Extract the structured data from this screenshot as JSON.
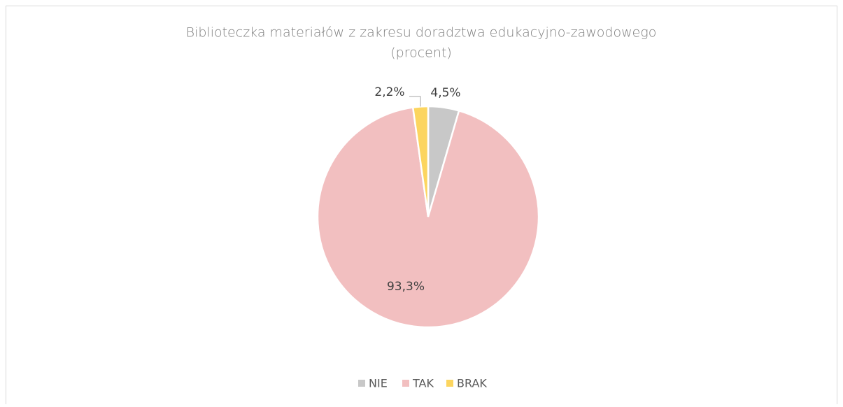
{
  "chart_data": {
    "type": "pie",
    "title": [
      "Biblioteczka materiałów z zakresu doradztwa edukacyjno-zawodowego",
      "(procent)"
    ],
    "categories": [
      "NIE",
      "TAK",
      "BRAK"
    ],
    "values": [
      4.5,
      93.3,
      2.2
    ],
    "value_labels": [
      "4,5%",
      "93,3%",
      "2,2%"
    ],
    "colors": [
      "#c8c8c8",
      "#f2bfc0",
      "#fcd55f"
    ],
    "legend": "bottom"
  }
}
